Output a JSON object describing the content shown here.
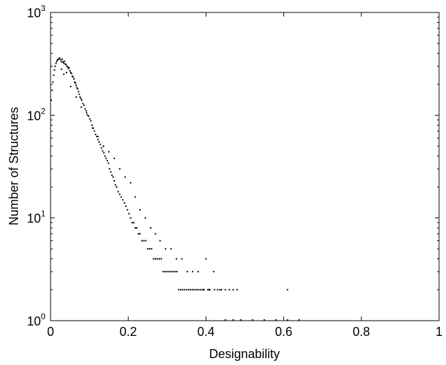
{
  "chart_data": {
    "type": "scatter",
    "title": "",
    "xlabel": "Designability",
    "ylabel": "Number of Structures",
    "xlim": [
      0,
      1
    ],
    "ylim": [
      1,
      1000
    ],
    "yscale": "log",
    "grid": false,
    "legend": "none",
    "x_ticks": [
      {
        "value": 0,
        "label": "0"
      },
      {
        "value": 0.2,
        "label": "0.2"
      },
      {
        "value": 0.4,
        "label": "0.4"
      },
      {
        "value": 0.6,
        "label": "0.6"
      },
      {
        "value": 0.8,
        "label": "0.8"
      },
      {
        "value": 1,
        "label": "1"
      }
    ],
    "y_ticks": [
      {
        "value": 1,
        "base": "10",
        "exp": "0"
      },
      {
        "value": 10,
        "base": "10",
        "exp": "1"
      },
      {
        "value": 100,
        "base": "10",
        "exp": "2"
      },
      {
        "value": 1000,
        "base": "10",
        "exp": "3"
      }
    ],
    "marker_color": "#000000",
    "series": [
      {
        "x": [
          0.002,
          0.004,
          0.006,
          0.008,
          0.01,
          0.012,
          0.014,
          0.016,
          0.018,
          0.02,
          0.022,
          0.024,
          0.026,
          0.028,
          0.03,
          0.032,
          0.034,
          0.036,
          0.038,
          0.04,
          0.042,
          0.044,
          0.046,
          0.048,
          0.05,
          0.052,
          0.054,
          0.056,
          0.058,
          0.06,
          0.062,
          0.064,
          0.066,
          0.068,
          0.07,
          0.072,
          0.074,
          0.076,
          0.078,
          0.08,
          0.083,
          0.086,
          0.089,
          0.092,
          0.095,
          0.098,
          0.101,
          0.104,
          0.107,
          0.11,
          0.113,
          0.116,
          0.119,
          0.122,
          0.125,
          0.128,
          0.131,
          0.134,
          0.137,
          0.14,
          0.143,
          0.146,
          0.149,
          0.152,
          0.155,
          0.158,
          0.161,
          0.164,
          0.167,
          0.17,
          0.174,
          0.178,
          0.182,
          0.186,
          0.19,
          0.194,
          0.198,
          0.202,
          0.206,
          0.21,
          0.214,
          0.218,
          0.222,
          0.226,
          0.23,
          0.235,
          0.24,
          0.245,
          0.25,
          0.255,
          0.26,
          0.265,
          0.27,
          0.275,
          0.28,
          0.285,
          0.29,
          0.295,
          0.3,
          0.305,
          0.31,
          0.315,
          0.32,
          0.325,
          0.33,
          0.335,
          0.34,
          0.345,
          0.35,
          0.355,
          0.36,
          0.365,
          0.37,
          0.375,
          0.38,
          0.385,
          0.39,
          0.395,
          0.4,
          0.405,
          0.41,
          0.42,
          0.43,
          0.44,
          0.45,
          0.46,
          0.47,
          0.48,
          0.61,
          0.028,
          0.034,
          0.041,
          0.052,
          0.066,
          0.079,
          0.093,
          0.108,
          0.122,
          0.136,
          0.15,
          0.164,
          0.178,
          0.192,
          0.206,
          0.218,
          0.23,
          0.244,
          0.258,
          0.27,
          0.282,
          0.296,
          0.31,
          0.324,
          0.338,
          0.352,
          0.366,
          0.38,
          0.394,
          0.408,
          0.422,
          0.436,
          0.45,
          0.47,
          0.49,
          0.52,
          0.55,
          0.58,
          0.61,
          0.64
        ],
        "y": [
          140,
          175,
          210,
          245,
          275,
          300,
          320,
          335,
          345,
          350,
          355,
          360,
          345,
          330,
          350,
          330,
          320,
          335,
          315,
          310,
          300,
          295,
          285,
          290,
          270,
          260,
          255,
          240,
          235,
          225,
          210,
          205,
          195,
          185,
          180,
          170,
          160,
          150,
          145,
          140,
          130,
          125,
          115,
          110,
          100,
          98,
          92,
          88,
          80,
          75,
          70,
          65,
          62,
          58,
          55,
          52,
          48,
          45,
          43,
          40,
          38,
          36,
          34,
          30,
          28,
          26,
          25,
          23,
          21,
          20,
          18,
          17,
          16,
          15,
          14,
          13,
          12,
          11,
          10,
          9,
          9,
          8,
          8,
          7,
          7,
          6,
          6,
          6,
          5,
          5,
          5,
          4,
          4,
          4,
          4,
          4,
          3,
          3,
          3,
          3,
          3,
          3,
          3,
          3,
          2,
          2,
          2,
          2,
          2,
          2,
          2,
          2,
          2,
          2,
          2,
          2,
          2,
          2,
          4,
          2,
          2,
          3,
          2,
          2,
          2,
          2,
          2,
          2,
          2,
          280,
          250,
          260,
          190,
          150,
          120,
          105,
          75,
          62,
          50,
          44,
          38,
          30,
          25,
          22,
          16,
          12,
          10,
          8,
          7,
          6,
          5,
          5,
          4,
          4,
          3,
          3,
          3,
          2,
          2,
          2,
          2,
          1,
          1,
          1,
          1,
          1,
          1,
          1,
          1
        ]
      }
    ]
  }
}
